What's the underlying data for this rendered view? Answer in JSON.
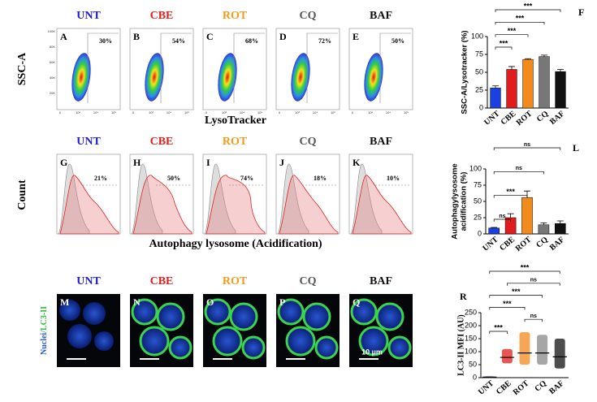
{
  "groups": [
    {
      "name": "UNT",
      "color": "#1c1cd8"
    },
    {
      "name": "CBE",
      "color": "#e01c1c"
    },
    {
      "name": "ROT",
      "color": "#f29a1c"
    },
    {
      "name": "CQ",
      "color": "#555555"
    },
    {
      "name": "BAF",
      "color": "#111111"
    }
  ],
  "rows": [
    {
      "ylabel": "SSC-A",
      "xlabel": "LysoTracker",
      "panels": [
        {
          "letter": "A",
          "percent": "30%"
        },
        {
          "letter": "B",
          "percent": "54%"
        },
        {
          "letter": "C",
          "percent": "68%"
        },
        {
          "letter": "D",
          "percent": "72%"
        },
        {
          "letter": "E",
          "percent": "50%"
        }
      ]
    },
    {
      "ylabel": "Count",
      "xlabel": "Autophagy lysosome (Acidification)",
      "panels": [
        {
          "letter": "G",
          "percent": "21%"
        },
        {
          "letter": "H",
          "percent": "50%"
        },
        {
          "letter": "I",
          "percent": "74%"
        },
        {
          "letter": "J",
          "percent": "18%"
        },
        {
          "letter": "K",
          "percent": "10%"
        }
      ]
    },
    {
      "panels": [
        {
          "letter": "M"
        },
        {
          "letter": "N"
        },
        {
          "letter": "O"
        },
        {
          "letter": "P"
        },
        {
          "letter": "Q"
        }
      ]
    }
  ],
  "density_ticks": {
    "y": [
      "100K",
      "80K",
      "60K",
      "40K",
      "20K"
    ],
    "x": [
      "0",
      "10³",
      "10⁴",
      "10⁵"
    ]
  },
  "stain_label": {
    "nuclei": "Nuclei",
    "marker": "/LC3-II"
  },
  "scale_bar": "10 µm",
  "chart_data": [
    {
      "type": "bar",
      "letter": "F",
      "ylabel": [
        "SSC-A/Lysotracker (%)"
      ],
      "categories": [
        "UNT",
        "CBE",
        "ROT",
        "CQ",
        "BAF"
      ],
      "values": [
        28,
        54,
        68,
        72,
        51
      ],
      "errors": [
        3,
        4,
        1,
        2,
        3
      ],
      "colors": [
        "#1c3fe0",
        "#e01c1c",
        "#f28a1c",
        "#777777",
        "#111111"
      ],
      "ylim": [
        0,
        100
      ],
      "yticks": [
        0,
        25,
        50,
        75,
        100
      ],
      "comparisons": [
        {
          "from": 0,
          "to": 1,
          "label": "***"
        },
        {
          "from": 0,
          "to": 2,
          "label": "***"
        },
        {
          "from": 0,
          "to": 3,
          "label": "***"
        },
        {
          "from": 0,
          "to": 4,
          "label": "***"
        }
      ]
    },
    {
      "type": "bar",
      "letter": "L",
      "ylabel": [
        "Autophagylysosome",
        "acidification (%)"
      ],
      "categories": [
        "UNT",
        "CBE",
        "ROT",
        "CQ",
        "BAF"
      ],
      "values": [
        9,
        25,
        56,
        14,
        16
      ],
      "errors": [
        1,
        6,
        10,
        3,
        4
      ],
      "colors": [
        "#1c3fe0",
        "#e01c1c",
        "#f28a1c",
        "#777777",
        "#111111"
      ],
      "ylim": [
        0,
        100
      ],
      "yticks": [
        0,
        25,
        50,
        75,
        100
      ],
      "comparisons": [
        {
          "from": 0,
          "to": 1,
          "label": "ns"
        },
        {
          "from": 0,
          "to": 2,
          "label": "***"
        },
        {
          "from": 0,
          "to": 3,
          "label": "ns"
        },
        {
          "from": 0,
          "to": 4,
          "label": "ns"
        }
      ]
    },
    {
      "type": "dot",
      "letter": "R",
      "ylabel": [
        "LC3-II MFI (AU)"
      ],
      "categories": [
        "UNT",
        "CBE",
        "ROT",
        "CQ",
        "BAF"
      ],
      "values": [
        2,
        78,
        95,
        95,
        80
      ],
      "ranges": [
        [
          0,
          5
        ],
        [
          55,
          110
        ],
        [
          50,
          175
        ],
        [
          50,
          165
        ],
        [
          35,
          150
        ]
      ],
      "colors": [
        "#1c3fe0",
        "#e01c1c",
        "#f28a1c",
        "#888888",
        "#111111"
      ],
      "ylim": [
        0,
        250
      ],
      "yticks": [
        0,
        50,
        100,
        150,
        200,
        250
      ],
      "comparisons": [
        {
          "from": 0,
          "to": 1,
          "label": "***"
        },
        {
          "from": 2,
          "to": 3,
          "label": "ns"
        },
        {
          "from": 0,
          "to": 2,
          "label": "***"
        },
        {
          "from": 0,
          "to": 3,
          "label": "***"
        },
        {
          "from": 1,
          "to": 4,
          "label": "ns"
        },
        {
          "from": 0,
          "to": 4,
          "label": "***"
        }
      ]
    }
  ]
}
